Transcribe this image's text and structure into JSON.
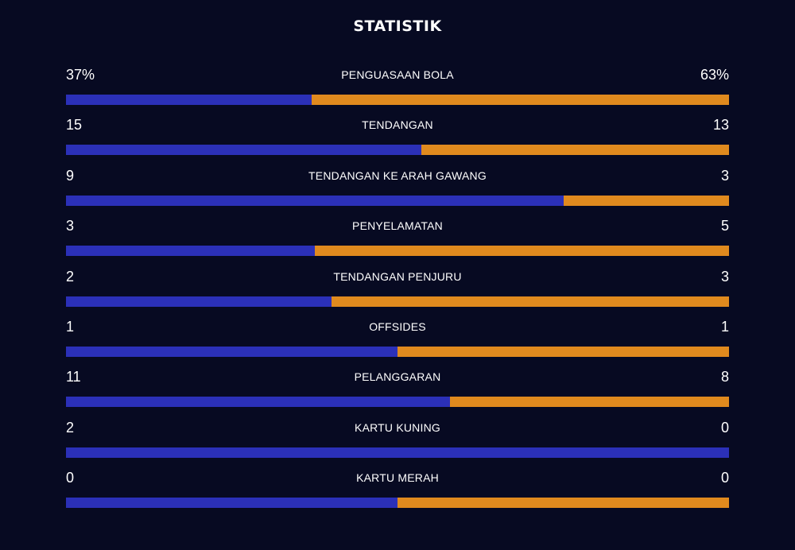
{
  "title": "STATISTIK",
  "colors": {
    "background": "#070a22",
    "home": "#2b30b8",
    "away": "#e08a1e"
  },
  "stats": [
    {
      "label": "PENGUASAAN BOLA",
      "home": "37%",
      "away": "63%",
      "home_share": 0.37
    },
    {
      "label": "TENDANGAN",
      "home": "15",
      "away": "13",
      "home_share": 0.5357
    },
    {
      "label": "TENDANGAN KE ARAH GAWANG",
      "home": "9",
      "away": "3",
      "home_share": 0.75
    },
    {
      "label": "PENYELAMATAN",
      "home": "3",
      "away": "5",
      "home_share": 0.375
    },
    {
      "label": "TENDANGAN PENJURU",
      "home": "2",
      "away": "3",
      "home_share": 0.4
    },
    {
      "label": "OFFSIDES",
      "home": "1",
      "away": "1",
      "home_share": 0.5
    },
    {
      "label": "PELANGGARAN",
      "home": "11",
      "away": "8",
      "home_share": 0.5789
    },
    {
      "label": "KARTU KUNING",
      "home": "2",
      "away": "0",
      "home_share": 1.0
    },
    {
      "label": "KARTU MERAH",
      "home": "0",
      "away": "0",
      "home_share": 0.5
    }
  ]
}
